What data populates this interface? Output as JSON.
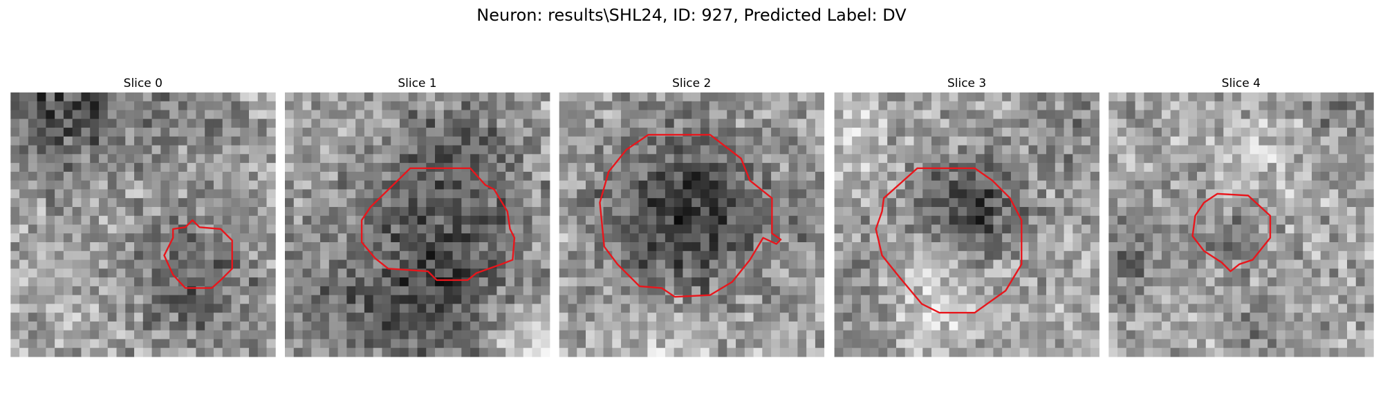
{
  "title": "Neuron: results\\SHL24, ID: 927, Predicted Label: DV",
  "panels": [
    {
      "title": "Slice 0"
    },
    {
      "title": "Slice 1"
    },
    {
      "title": "Slice 2"
    },
    {
      "title": "Slice 3"
    },
    {
      "title": "Slice 4"
    }
  ]
}
